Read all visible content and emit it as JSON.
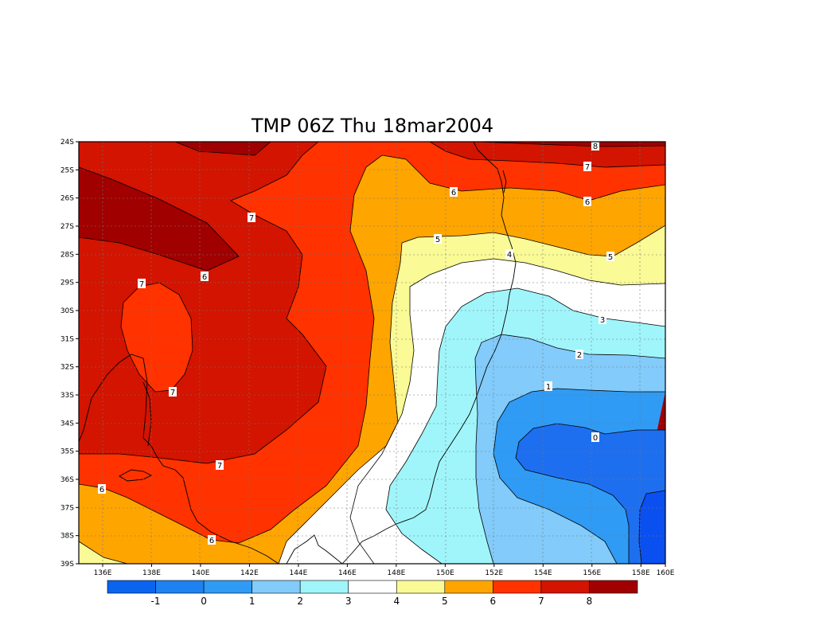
{
  "title": "TMP 06Z Thu 18mar2004",
  "lat_ticks": [
    "24S",
    "25S",
    "26S",
    "27S",
    "28S",
    "29S",
    "30S",
    "31S",
    "32S",
    "33S",
    "34S",
    "35S",
    "36S",
    "37S",
    "38S",
    "39S"
  ],
  "lon_ticks": [
    "136E",
    "138E",
    "140E",
    "142E",
    "144E",
    "146E",
    "148E",
    "150E",
    "152E",
    "154E",
    "156E",
    "158E",
    "160E"
  ],
  "contour_labels": [
    "8",
    "7",
    "6",
    "5",
    "4",
    "3",
    "2",
    "1",
    "0",
    "7",
    "6",
    "7",
    "7",
    "7",
    "6",
    "6",
    "5",
    "6"
  ],
  "colorbar": {
    "labels": [
      "-1",
      "0",
      "1",
      "2",
      "3",
      "4",
      "5",
      "6",
      "7",
      "8"
    ],
    "colors": [
      "#0a64f0",
      "#1e82f0",
      "#2f9bf5",
      "#82cbfa",
      "#a0f5fa",
      "#ffffff",
      "#fafa96",
      "#ffa500",
      "#ff3200",
      "#d21400",
      "#a00000"
    ]
  },
  "colors": {
    "level_0": "#1e6ef0",
    "level_1": "#2f9bf5",
    "level_2": "#82cbfa",
    "level_3": "#a0f5fa",
    "level_4": "#ffffff",
    "level_5": "#fafa96",
    "level_6": "#ffa500",
    "level_7": "#ff3200",
    "level_8": "#d21400",
    "level_9": "#a00000",
    "level_10": "#0a50f0"
  }
}
